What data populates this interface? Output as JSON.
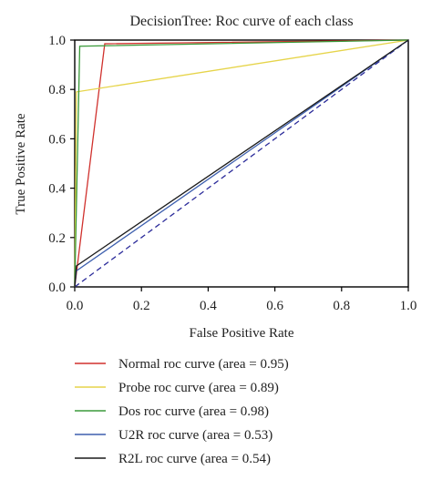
{
  "chart_data": {
    "type": "line",
    "title": "DecisionTree: Roc curve of each class",
    "xlabel": "False Positive Rate",
    "ylabel": "True Positive Rate",
    "xlim": [
      0.0,
      1.0
    ],
    "ylim": [
      0.0,
      1.0
    ],
    "xticks": [
      "0.0",
      "0.2",
      "0.4",
      "0.6",
      "0.8",
      "1.0"
    ],
    "yticks": [
      "0.0",
      "0.2",
      "0.4",
      "0.6",
      "0.8",
      "1.0"
    ],
    "grid": false,
    "legend_placement": "bottom",
    "series": [
      {
        "name": "Normal roc curve (area = 0.95)",
        "color": "#d0312d",
        "x": [
          0.0,
          0.09,
          1.0
        ],
        "y": [
          0.0,
          0.985,
          1.0
        ]
      },
      {
        "name": "Probe roc curve (area = 0.89)",
        "color": "#e6d44a",
        "x": [
          0.0,
          0.005,
          1.0
        ],
        "y": [
          0.0,
          0.79,
          1.0
        ]
      },
      {
        "name": "Dos roc curve (area = 0.98)",
        "color": "#3a9a3a",
        "x": [
          0.0,
          0.015,
          1.0
        ],
        "y": [
          0.0,
          0.975,
          1.0
        ]
      },
      {
        "name": "U2R roc curve (area = 0.53)",
        "color": "#3d5fae",
        "x": [
          0.0,
          0.005,
          1.0
        ],
        "y": [
          0.0,
          0.065,
          1.0
        ]
      },
      {
        "name": "R2L roc curve (area = 0.54)",
        "color": "#1a1a1a",
        "x": [
          0.0,
          0.005,
          1.0
        ],
        "y": [
          0.0,
          0.085,
          1.0
        ]
      }
    ],
    "reference_line": {
      "style": "dashed",
      "color": "#2b2b9a",
      "x": [
        0.0,
        1.0
      ],
      "y": [
        0.0,
        1.0
      ]
    }
  }
}
